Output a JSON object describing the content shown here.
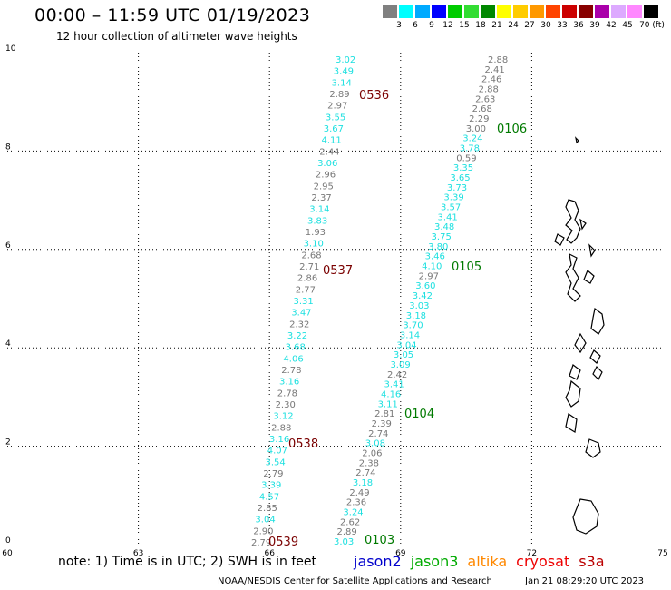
{
  "header": {
    "title": "00:00 – 11:59 UTC 01/19/2023",
    "subtitle": "12 hour collection of altimeter wave heights"
  },
  "color_scale": {
    "labels": [
      "3",
      "6",
      "9",
      "12",
      "15",
      "18",
      "21",
      "24",
      "27",
      "30",
      "33",
      "36",
      "39",
      "42",
      "45",
      "70 (ft)"
    ],
    "colors": [
      "#808080",
      "#00ffff",
      "#00aaff",
      "#0000ff",
      "#00cc00",
      "#33dd33",
      "#008800",
      "#ffff00",
      "#ffcc00",
      "#ff9900",
      "#ff4400",
      "#cc0000",
      "#880000",
      "#aa00aa",
      "#ddaaff",
      "#ff88ff",
      "#000000"
    ]
  },
  "axes": {
    "x_ticks": [
      "60",
      "63",
      "66",
      "69",
      "72",
      "75"
    ],
    "y_ticks": [
      "0",
      "2",
      "4",
      "6",
      "8",
      "10"
    ]
  },
  "colors": {
    "gray": "#777777",
    "cyan": "#1de0e0",
    "pass_red": "#7a0000",
    "pass_green": "#007a00"
  },
  "tracks": [
    {
      "name": "track-1",
      "values": [
        "3.02",
        "3.49",
        "3.14",
        "2.89",
        "2.97",
        "3.55",
        "3.67",
        "4.11",
        "2.44",
        "3.06",
        "2.96",
        "2.95",
        "2.37",
        "3.14",
        "3.83",
        "1.93",
        "3.10",
        "2.68",
        "2.71",
        "2.86",
        "2.77",
        "3.31",
        "3.47",
        "2.32",
        "3.22",
        "3.68",
        "4.06",
        "2.78",
        "3.16",
        "2.78",
        "2.30",
        "3.12",
        "2.88",
        "3.16",
        "4.07",
        "3.54",
        "2.79",
        "3.39",
        "4.57",
        "2.85",
        "3.04",
        "2.90",
        "2.79"
      ],
      "levels": [
        "c",
        "c",
        "c",
        "g",
        "g",
        "c",
        "c",
        "c",
        "g",
        "c",
        "g",
        "g",
        "g",
        "c",
        "c",
        "g",
        "c",
        "g",
        "g",
        "g",
        "g",
        "c",
        "c",
        "g",
        "c",
        "c",
        "c",
        "g",
        "c",
        "g",
        "g",
        "c",
        "g",
        "c",
        "c",
        "c",
        "g",
        "c",
        "c",
        "g",
        "c",
        "g",
        "g"
      ]
    },
    {
      "name": "track-2",
      "values": [
        "2.88",
        "2.41",
        "2.46",
        "2.88",
        "2.63",
        "2.68",
        "2.29",
        "3.00",
        "3.24",
        "3.78",
        "0.59",
        "3.35",
        "3.65",
        "3.73",
        "3.39",
        "3.57",
        "3.41",
        "3.48",
        "3.75",
        "3.80",
        "3.46",
        "4.10",
        "2.97",
        "3.60",
        "3.42",
        "3.03",
        "3.18",
        "3.70",
        "3.14",
        "3.04",
        "3.05",
        "3.09",
        "2.42",
        "3.41",
        "4.16",
        "3.11",
        "2.81",
        "2.39",
        "2.74",
        "3.08",
        "2.06",
        "2.38",
        "2.74",
        "3.18",
        "2.49",
        "2.36",
        "3.24",
        "2.62",
        "2.89",
        "3.03"
      ],
      "levels": [
        "g",
        "g",
        "g",
        "g",
        "g",
        "g",
        "g",
        "g",
        "c",
        "c",
        "g",
        "c",
        "c",
        "c",
        "c",
        "c",
        "c",
        "c",
        "c",
        "c",
        "c",
        "c",
        "g",
        "c",
        "c",
        "c",
        "c",
        "c",
        "c",
        "c",
        "c",
        "c",
        "g",
        "c",
        "c",
        "c",
        "g",
        "g",
        "g",
        "c",
        "g",
        "g",
        "g",
        "c",
        "g",
        "g",
        "c",
        "g",
        "g",
        "c"
      ]
    }
  ],
  "pass_labels": [
    {
      "text": "0536",
      "color": "red"
    },
    {
      "text": "0537",
      "color": "red"
    },
    {
      "text": "0538",
      "color": "red"
    },
    {
      "text": "0539",
      "color": "red"
    },
    {
      "text": "0106",
      "color": "green"
    },
    {
      "text": "0105",
      "color": "green"
    },
    {
      "text": "0104",
      "color": "green"
    },
    {
      "text": "0103",
      "color": "green"
    }
  ],
  "footer": {
    "note": "note: 1) Time is in UTC; 2) SWH is in feet",
    "satellites": [
      {
        "name": "jason2",
        "color": "#0000cc"
      },
      {
        "name": "jason3",
        "color": "#00aa00"
      },
      {
        "name": "altika",
        "color": "#ff8800"
      },
      {
        "name": "cryosat",
        "color": "#ee0000"
      },
      {
        "name": "s3a",
        "color": "#bb0000"
      }
    ],
    "credit": "NOAA/NESDIS Center for Satellite Applications and Research",
    "generated": "Jan 21 08:29:20 UTC 2023"
  }
}
